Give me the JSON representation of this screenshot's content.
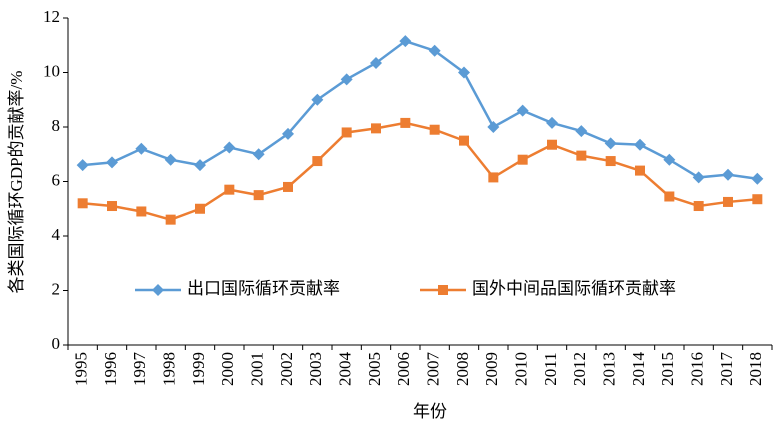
{
  "chart_data": {
    "type": "line",
    "x_label": "年份",
    "y_label": "各类国际循环GDP的贡献率/%",
    "categories": [
      "1995",
      "1996",
      "1997",
      "1998",
      "1999",
      "2000",
      "2001",
      "2002",
      "2003",
      "2004",
      "2005",
      "2006",
      "2007",
      "2008",
      "2009",
      "2010",
      "2011",
      "2012",
      "2013",
      "2014",
      "2015",
      "2016",
      "2017",
      "2018"
    ],
    "series": [
      {
        "name": "出口国际循环贡献率",
        "color": "#5b9bd5",
        "marker": "diamond",
        "values": [
          6.6,
          6.7,
          7.2,
          6.8,
          6.6,
          7.25,
          7.0,
          7.75,
          9.0,
          9.75,
          10.35,
          11.15,
          10.8,
          10.0,
          8.0,
          8.6,
          8.15,
          7.85,
          7.4,
          7.35,
          6.8,
          6.15,
          6.25,
          6.1
        ]
      },
      {
        "name": "国外中间品国际循环贡献率",
        "color": "#ed7d31",
        "marker": "square",
        "values": [
          5.2,
          5.1,
          4.9,
          4.6,
          5.0,
          5.7,
          5.5,
          5.8,
          6.75,
          7.8,
          7.95,
          8.15,
          7.9,
          7.5,
          6.15,
          6.8,
          7.35,
          6.95,
          6.75,
          6.4,
          5.45,
          5.1,
          5.25,
          5.35
        ]
      }
    ],
    "ylim": [
      0,
      12
    ],
    "yticks": [
      0,
      2,
      4,
      6,
      8,
      10,
      12
    ],
    "grid": false
  }
}
